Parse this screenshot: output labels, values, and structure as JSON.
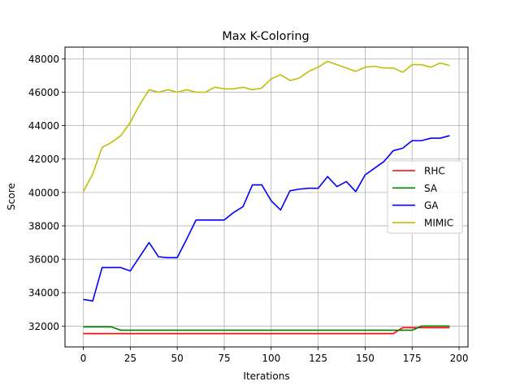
{
  "chart_data": {
    "type": "line",
    "title": "Max K-Coloring",
    "xlabel": "Iterations",
    "ylabel": "Score",
    "xlim": [
      -9.75,
      204.75
    ],
    "ylim": [
      30750,
      48700
    ],
    "xticks": [
      0,
      25,
      50,
      75,
      100,
      125,
      150,
      175,
      200
    ],
    "yticks": [
      32000,
      34000,
      36000,
      38000,
      40000,
      42000,
      44000,
      46000,
      48000
    ],
    "grid": true,
    "legend_position": "center-right",
    "x": [
      0,
      5,
      10,
      15,
      20,
      25,
      30,
      35,
      40,
      45,
      50,
      55,
      60,
      65,
      70,
      75,
      80,
      85,
      90,
      95,
      100,
      105,
      110,
      115,
      120,
      125,
      130,
      135,
      140,
      145,
      150,
      155,
      160,
      165,
      170,
      175,
      180,
      185,
      190,
      195
    ],
    "series": [
      {
        "name": "RHC",
        "color": "#ff0000",
        "values": [
          31550,
          31550,
          31550,
          31550,
          31550,
          31550,
          31550,
          31550,
          31550,
          31550,
          31550,
          31550,
          31550,
          31550,
          31550,
          31550,
          31550,
          31550,
          31550,
          31550,
          31550,
          31550,
          31550,
          31550,
          31550,
          31550,
          31550,
          31550,
          31550,
          31550,
          31550,
          31550,
          31550,
          31550,
          31900,
          31900,
          31900,
          31900,
          31900,
          31900
        ]
      },
      {
        "name": "SA",
        "color": "#008000",
        "values": [
          31950,
          31950,
          31950,
          31950,
          31750,
          31750,
          31750,
          31750,
          31750,
          31750,
          31750,
          31750,
          31750,
          31750,
          31750,
          31750,
          31750,
          31750,
          31750,
          31750,
          31750,
          31750,
          31750,
          31750,
          31750,
          31750,
          31750,
          31750,
          31750,
          31750,
          31750,
          31750,
          31750,
          31750,
          31750,
          31750,
          32000,
          32000,
          32000,
          32000
        ]
      },
      {
        "name": "GA",
        "color": "#0000ff",
        "values": [
          33600,
          33500,
          35500,
          35500,
          35500,
          35300,
          36150,
          37000,
          36150,
          36100,
          36100,
          37200,
          38350,
          38350,
          38350,
          38350,
          38800,
          39150,
          40450,
          40450,
          39500,
          38950,
          40100,
          40200,
          40250,
          40250,
          40950,
          40350,
          40650,
          40050,
          41050,
          41450,
          41850,
          42500,
          42650,
          43100,
          43100,
          43250,
          43250,
          43400
        ]
      },
      {
        "name": "MIMIC",
        "color": "#bfbf00",
        "values": [
          40050,
          41100,
          42700,
          43000,
          43400,
          44200,
          45250,
          46150,
          46000,
          46150,
          46000,
          46150,
          46000,
          46000,
          46300,
          46200,
          46200,
          46300,
          46150,
          46250,
          46800,
          47050,
          46700,
          46850,
          47250,
          47500,
          47850,
          47650,
          47450,
          47250,
          47500,
          47550,
          47450,
          47450,
          47200,
          47650,
          47650,
          47500,
          47750,
          47600
        ]
      }
    ]
  }
}
